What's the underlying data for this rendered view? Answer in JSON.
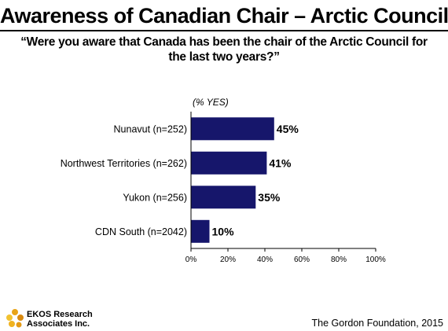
{
  "header": {
    "title": "Awareness of Canadian Chair – Arctic Council",
    "subtitle": "“Were you aware that Canada has been the chair of the Arctic Council for the last two years?”"
  },
  "chart_data": {
    "type": "bar",
    "orientation": "horizontal",
    "unit_label": "(% YES)",
    "categories": [
      "Nunavut (n=252)",
      "Northwest Territories (n=262)",
      "Yukon (n=256)",
      "CDN South (n=2042)"
    ],
    "values": [
      45,
      41,
      35,
      10
    ],
    "value_labels": [
      "45%",
      "41%",
      "35%",
      "10%"
    ],
    "xlim": [
      0,
      100
    ],
    "x_ticks": [
      0,
      20,
      40,
      60,
      80,
      100
    ],
    "x_tick_labels": [
      "0%",
      "20%",
      "40%",
      "60%",
      "80%",
      "100%"
    ],
    "grid": false,
    "legend": "none",
    "colors": {
      "bar": "#16166b"
    }
  },
  "footer": {
    "logo_line1": "EKOS Research",
    "logo_line2": "Associates Inc.",
    "source": "The Gordon Foundation, 2015"
  }
}
